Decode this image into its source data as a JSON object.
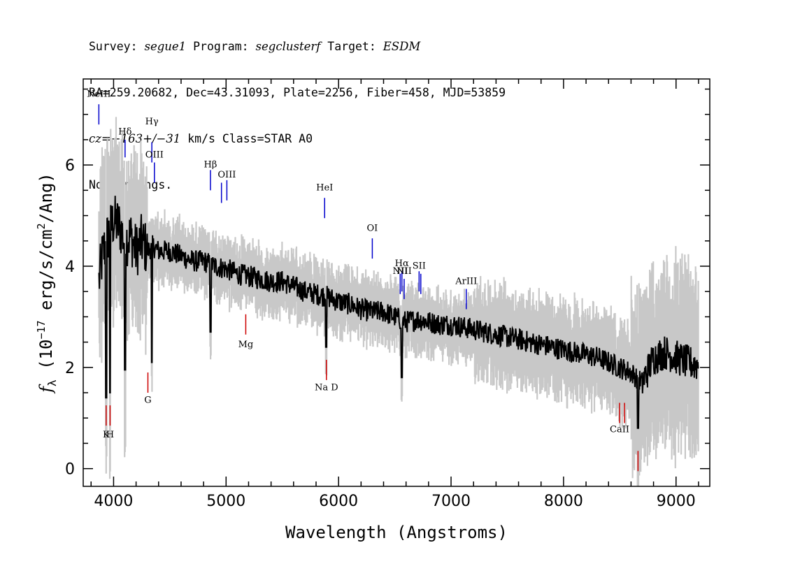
{
  "header": {
    "survey_label": "Survey:",
    "survey": "segue1",
    "program_label": "Program:",
    "program": "segclusterf",
    "target_label": "Target:",
    "target": "ESDM",
    "line2": "RA=259.20682, Dec=43.31093, Plate=2256, Fiber=458, MJD=53859",
    "cz_label": "cz=",
    "cz_value": "−163+/−31",
    "cz_unit": " km/s Class=STAR A0",
    "warnings": "No warnings."
  },
  "chart_data": {
    "type": "line",
    "xlabel": "Wavelength (Angstroms)",
    "ylabel_prefix": "f",
    "ylabel_sub": "λ",
    "ylabel_units": " (10",
    "ylabel_exp": "−17",
    "ylabel_rest": " erg/s/cm",
    "ylabel_exp2": "2",
    "ylabel_end": "/Ang)",
    "xlim": [
      3730,
      9300
    ],
    "ylim": [
      -0.35,
      7.7
    ],
    "x_ticks": [
      4000,
      5000,
      6000,
      7000,
      8000,
      9000
    ],
    "x_tick_labels": [
      "4000",
      "5000",
      "6000",
      "7000",
      "8000",
      "9000"
    ],
    "y_ticks": [
      0,
      2,
      4,
      6
    ],
    "y_tick_labels": [
      "0",
      "2",
      "4",
      "6"
    ],
    "grid": false,
    "colors": {
      "flux": "#000000",
      "error_band": "#c8c8c8",
      "emission": "#0000cc",
      "absorption": "#cc0000"
    },
    "flux_series": {
      "x": [
        3870,
        3900,
        3950,
        4000,
        4050,
        4100,
        4150,
        4200,
        4250,
        4300,
        4350,
        4400,
        4500,
        4600,
        4700,
        4800,
        4900,
        5000,
        5100,
        5200,
        5300,
        5400,
        5500,
        5600,
        5700,
        5800,
        5900,
        6000,
        6100,
        6200,
        6300,
        6400,
        6500,
        6600,
        6700,
        6800,
        6900,
        7000,
        7100,
        7200,
        7300,
        7400,
        7500,
        7600,
        7700,
        7800,
        7900,
        8000,
        8100,
        8200,
        8300,
        8400,
        8500,
        8600,
        8700,
        8800,
        8900,
        9000,
        9100,
        9200
      ],
      "y": [
        3.7,
        4.2,
        4.6,
        4.9,
        4.8,
        4.5,
        4.6,
        4.3,
        4.5,
        4.3,
        4.4,
        4.3,
        4.3,
        4.2,
        4.1,
        4.1,
        4.0,
        3.95,
        3.85,
        3.8,
        3.75,
        3.7,
        3.7,
        3.6,
        3.5,
        3.45,
        3.4,
        3.3,
        3.25,
        3.15,
        3.1,
        3.1,
        3.0,
        2.9,
        2.95,
        2.9,
        2.85,
        2.85,
        2.8,
        2.75,
        2.7,
        2.65,
        2.6,
        2.55,
        2.5,
        2.45,
        2.4,
        2.35,
        2.3,
        2.25,
        2.2,
        2.1,
        2.0,
        1.9,
        1.7,
        2.2,
        2.3,
        2.2,
        2.1,
        2.05
      ]
    },
    "dips": [
      {
        "x": 3934,
        "y": 1.4
      },
      {
        "x": 3968,
        "y": 1.5
      },
      {
        "x": 4101,
        "y": 1.95
      },
      {
        "x": 4340,
        "y": 2.1
      },
      {
        "x": 4861,
        "y": 2.7
      },
      {
        "x": 5890,
        "y": 2.4
      },
      {
        "x": 6563,
        "y": 1.8
      },
      {
        "x": 8662,
        "y": 0.8
      }
    ],
    "annotations": [
      {
        "label": "NeIII",
        "x": 3869,
        "y1": 6.8,
        "y2": 7.2,
        "kind": "emission",
        "label_y": 7.35
      },
      {
        "label": "Hδ",
        "x": 4102,
        "y1": 6.15,
        "y2": 6.5,
        "kind": "emission",
        "label_y": 6.6
      },
      {
        "label": "Hγ",
        "x": 4340,
        "y1": 6.05,
        "y2": 6.45,
        "kind": "emission",
        "label_y": 6.8
      },
      {
        "label": "OIII",
        "x": 4363,
        "y1": 5.65,
        "y2": 6.05,
        "kind": "emission",
        "label_y": 6.15
      },
      {
        "label": "Hβ",
        "x": 4861,
        "y1": 5.5,
        "y2": 5.9,
        "kind": "emission",
        "label_y": 5.95
      },
      {
        "label": "",
        "x": 4959,
        "y1": 5.25,
        "y2": 5.65,
        "kind": "emission",
        "label_y": 0
      },
      {
        "label": "OIII",
        "x": 5007,
        "y1": 5.3,
        "y2": 5.7,
        "kind": "emission",
        "label_y": 5.75
      },
      {
        "label": "HeI",
        "x": 5876,
        "y1": 4.95,
        "y2": 5.35,
        "kind": "emission",
        "label_y": 5.5
      },
      {
        "label": "OI",
        "x": 6300,
        "y1": 4.15,
        "y2": 4.55,
        "kind": "emission",
        "label_y": 4.7
      },
      {
        "label": "NII",
        "x": 6548,
        "y1": 3.45,
        "y2": 3.85,
        "kind": "emission",
        "label_y": 3.85
      },
      {
        "label": "Hα",
        "x": 6563,
        "y1": 3.5,
        "y2": 3.9,
        "kind": "emission",
        "label_y": 4.0
      },
      {
        "label": "NII",
        "x": 6583,
        "y1": 3.35,
        "y2": 3.75,
        "kind": "emission",
        "label_y": 3.85
      },
      {
        "label": "SII",
        "x": 6716,
        "y1": 3.5,
        "y2": 3.9,
        "kind": "emission",
        "label_y": 3.95
      },
      {
        "label": "",
        "x": 6731,
        "y1": 3.45,
        "y2": 3.85,
        "kind": "emission",
        "label_y": 0
      },
      {
        "label": "ArIII",
        "x": 7135,
        "y1": 3.15,
        "y2": 3.55,
        "kind": "emission",
        "label_y": 3.65
      },
      {
        "label": "Mg",
        "x": 5175,
        "y1": 2.65,
        "y2": 3.05,
        "kind": "absorption",
        "label_y": 2.4
      },
      {
        "label": "G",
        "x": 4305,
        "y1": 1.5,
        "y2": 1.9,
        "kind": "absorption",
        "label_y": 1.3
      },
      {
        "label": "Na D",
        "x": 5892,
        "y1": 1.75,
        "y2": 2.15,
        "kind": "absorption",
        "label_y": 1.55
      },
      {
        "label": "K",
        "x": 3934,
        "y1": 0.85,
        "y2": 1.25,
        "kind": "absorption",
        "label_y": 0.62
      },
      {
        "label": "H",
        "x": 3969,
        "y1": 0.85,
        "y2": 1.25,
        "kind": "absorption",
        "label_y": 0.62
      },
      {
        "label": "CaII",
        "x": 8498,
        "y1": 0.9,
        "y2": 1.3,
        "kind": "absorption",
        "label_y": 0.72
      },
      {
        "label": "",
        "x": 8542,
        "y1": 0.9,
        "y2": 1.3,
        "kind": "absorption",
        "label_y": 0
      },
      {
        "label": "",
        "x": 8662,
        "y1": -0.05,
        "y2": 0.35,
        "kind": "absorption",
        "label_y": 0
      }
    ]
  }
}
